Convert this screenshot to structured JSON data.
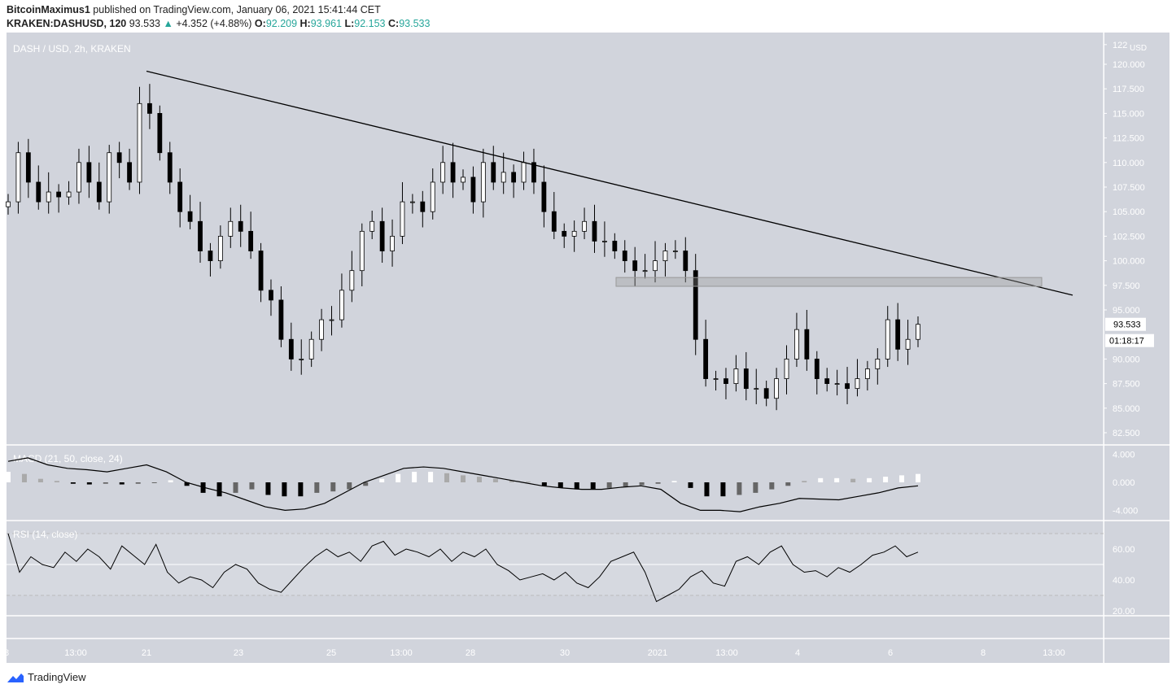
{
  "header": {
    "publisher": "BitcoinMaximus1",
    "published_text": "published on TradingView.com, January 06, 2021 15:41:44 CET",
    "symbol": "KRAKEN:DASHUSD, 120",
    "last": "93.533",
    "change": "+4.352 (+4.88%)",
    "o_label": "O:",
    "o": "92.209",
    "h_label": "H:",
    "h": "93.961",
    "l_label": "L:",
    "l": "92.153",
    "c_label": "C:",
    "c": "93.533"
  },
  "brand": "TradingView",
  "colors": {
    "panel": "#d1d4dc",
    "up": "#ffffff",
    "down": "#000000",
    "accent": "#26a69a"
  },
  "chart_data": [
    {
      "type": "candlestick",
      "title": "DASH / USD, 2h, KRAKEN",
      "unit_label": "USD",
      "ylim": [
        81,
        123
      ],
      "yticks": [
        "122",
        "120.000",
        "117.500",
        "115.000",
        "112.500",
        "110.000",
        "107.500",
        "105.000",
        "102.500",
        "100.000",
        "97.500",
        "95.000",
        "90.000",
        "87.500",
        "85.000",
        "82.500"
      ],
      "xticks": [
        "8",
        "13:00",
        "21",
        "23",
        "25",
        "13:00",
        "28",
        "30",
        "2021",
        "13:00",
        "4",
        "6",
        "8",
        "13:00"
      ],
      "last_price_label": "93.533",
      "countdown_label": "01:18:17",
      "closes": [
        106,
        111,
        108,
        106,
        107,
        106.5,
        107,
        110,
        108,
        106,
        111,
        110,
        108,
        116,
        115,
        111,
        108,
        105,
        104,
        101,
        100,
        102.5,
        104,
        103,
        101,
        97,
        96,
        92,
        90,
        90,
        92,
        94,
        94,
        97,
        99,
        103,
        104,
        101,
        102.5,
        106,
        106,
        105,
        108,
        110,
        108,
        108.5,
        106,
        110,
        108,
        109,
        108,
        110,
        108,
        105,
        103,
        102.5,
        103,
        104,
        102,
        102,
        101,
        100,
        99,
        99,
        100,
        101,
        101,
        99,
        92,
        88,
        88,
        87.5,
        89,
        87,
        87,
        86,
        88,
        90,
        93,
        90,
        88,
        87.5,
        87.5,
        87,
        88,
        89,
        90,
        94,
        91,
        92,
        93.533
      ],
      "trendline": {
        "from": [
          119.3
        ],
        "to": [
          96.5
        ]
      },
      "resistance_zone": [
        97.4,
        98.3
      ]
    },
    {
      "type": "line",
      "title": "MACD (21, 50, close, 24)",
      "yticks": [
        "4.000",
        "0.000",
        "-4.000"
      ],
      "ylim": [
        -5,
        5
      ],
      "macd": [
        3,
        3.5,
        2.5,
        2,
        1.8,
        1.5,
        2,
        2.5,
        1.5,
        0,
        -0.8,
        -1.5,
        -2.5,
        -3.5,
        -4,
        -3.8,
        -3,
        -1.5,
        0,
        1,
        2,
        2.2,
        2,
        1.5,
        1,
        0.5,
        0,
        -0.5,
        -0.8,
        -1,
        -1,
        -0.7,
        -0.5,
        -1,
        -3,
        -4,
        -4,
        -4.2,
        -3.5,
        -3,
        -2.3,
        -2.4,
        -2.5,
        -2,
        -1.5,
        -0.8,
        -0.5
      ],
      "histogram": [
        1.5,
        1.2,
        0.5,
        0.2,
        -0.2,
        -0.3,
        -0.2,
        -0.3,
        -0.2,
        -0.1,
        0.3,
        -0.5,
        -1.5,
        -2,
        -1.5,
        -1,
        -1.8,
        -2,
        -2,
        -1.5,
        -1.3,
        -1,
        -0.5,
        0.5,
        1.2,
        1.5,
        1.5,
        1.3,
        1,
        0.8,
        0.5,
        0.3,
        0.1,
        -0.5,
        -0.8,
        -1,
        -1,
        -0.8,
        -0.6,
        -0.4,
        -0.2,
        0.2,
        -0.8,
        -2,
        -2,
        -1.8,
        -1.5,
        -1,
        -0.5,
        0.2,
        0.6,
        0.6,
        0.5,
        0.6,
        0.8,
        1,
        1.2
      ]
    },
    {
      "type": "line",
      "title": "RSI (14, close)",
      "yticks": [
        "60.00",
        "40.00",
        "20.00"
      ],
      "ylim": [
        10,
        80
      ],
      "levels": [
        70,
        50,
        30
      ],
      "rsi": [
        70,
        45,
        55,
        50,
        48,
        58,
        52,
        60,
        55,
        47,
        62,
        56,
        50,
        63,
        45,
        38,
        42,
        40,
        35,
        45,
        50,
        47,
        38,
        34,
        32,
        40,
        48,
        55,
        60,
        55,
        58,
        52,
        62,
        65,
        56,
        60,
        58,
        55,
        60,
        52,
        58,
        55,
        60,
        50,
        46,
        40,
        42,
        44,
        40,
        45,
        38,
        35,
        42,
        52,
        55,
        58,
        45,
        26,
        30,
        34,
        42,
        46,
        38,
        36,
        52,
        55,
        50,
        58,
        62,
        50,
        45,
        46,
        42,
        48,
        45,
        50,
        56,
        58,
        62,
        55,
        58
      ]
    }
  ]
}
